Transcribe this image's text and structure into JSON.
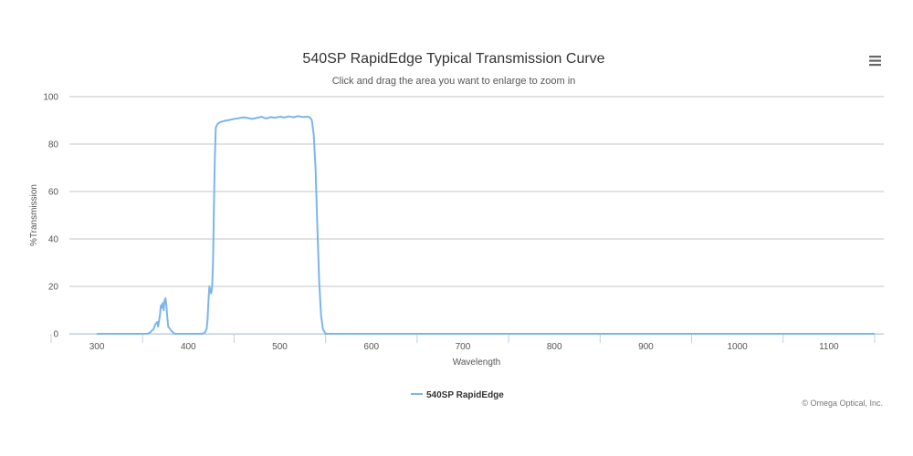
{
  "chart_data": {
    "type": "line",
    "title": "540SP RapidEdge Typical Transmission Curve",
    "subtitle": "Click and drag the area you want to enlarge to zoom in",
    "xlabel": "Wavelength",
    "ylabel": "%Transmission",
    "xlim": [
      270,
      1160
    ],
    "ylim": [
      0,
      100
    ],
    "x_ticks": [
      300,
      400,
      500,
      600,
      700,
      800,
      900,
      1000,
      1100
    ],
    "y_ticks": [
      0,
      20,
      40,
      60,
      80,
      100
    ],
    "grid": true,
    "legend_position": "bottom-center",
    "series": [
      {
        "name": "540SP RapidEdge",
        "color": "#7cb5ec",
        "points": [
          [
            300,
            0
          ],
          [
            355,
            0
          ],
          [
            358,
            0.5
          ],
          [
            362,
            2
          ],
          [
            364,
            4
          ],
          [
            366,
            5
          ],
          [
            367,
            3
          ],
          [
            369,
            8
          ],
          [
            370,
            12
          ],
          [
            371,
            11
          ],
          [
            372,
            13
          ],
          [
            373,
            10
          ],
          [
            374,
            14
          ],
          [
            375,
            15
          ],
          [
            376,
            12
          ],
          [
            377,
            7
          ],
          [
            378,
            3
          ],
          [
            380,
            2
          ],
          [
            382,
            1
          ],
          [
            385,
            0
          ],
          [
            415,
            0
          ],
          [
            418,
            0.5
          ],
          [
            420,
            2
          ],
          [
            421,
            6
          ],
          [
            422,
            14
          ],
          [
            423,
            20
          ],
          [
            424,
            18
          ],
          [
            425,
            17
          ],
          [
            426,
            20
          ],
          [
            427,
            30
          ],
          [
            428,
            55
          ],
          [
            429,
            75
          ],
          [
            430,
            87
          ],
          [
            432,
            88.5
          ],
          [
            435,
            89.3
          ],
          [
            440,
            89.8
          ],
          [
            445,
            90.2
          ],
          [
            450,
            90.6
          ],
          [
            455,
            90.9
          ],
          [
            460,
            91.3
          ],
          [
            465,
            91.0
          ],
          [
            470,
            90.6
          ],
          [
            475,
            91.1
          ],
          [
            480,
            91.5
          ],
          [
            485,
            90.8
          ],
          [
            490,
            91.4
          ],
          [
            495,
            91.1
          ],
          [
            500,
            91.6
          ],
          [
            505,
            91.2
          ],
          [
            510,
            91.7
          ],
          [
            515,
            91.3
          ],
          [
            520,
            91.8
          ],
          [
            525,
            91.4
          ],
          [
            530,
            91.6
          ],
          [
            533,
            91.2
          ],
          [
            535,
            90
          ],
          [
            537,
            84
          ],
          [
            539,
            70
          ],
          [
            541,
            45
          ],
          [
            543,
            22
          ],
          [
            545,
            8
          ],
          [
            547,
            2
          ],
          [
            550,
            0
          ],
          [
            1150,
            0
          ]
        ]
      }
    ]
  },
  "credit": "© Omega Optical, Inc.",
  "menu": {
    "icon": "hamburger-menu-icon"
  }
}
